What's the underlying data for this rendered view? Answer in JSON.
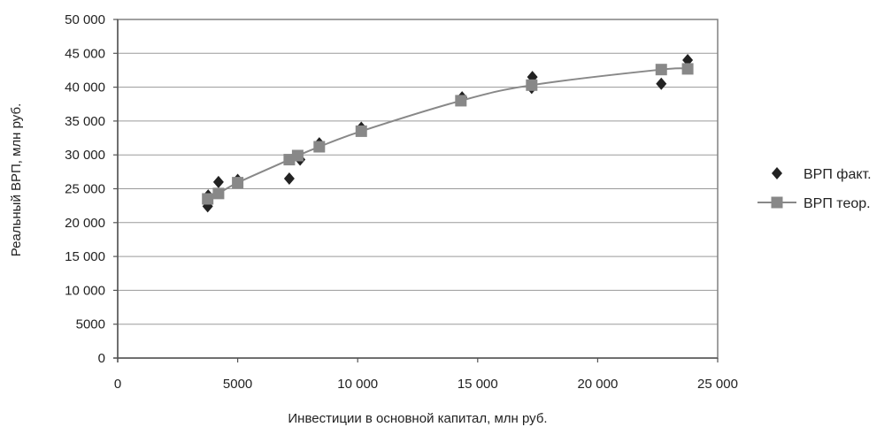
{
  "chart_data": {
    "type": "scatter",
    "xlabel": "Инвестиции в основной капитал, млн руб.",
    "ylabel": "Реальный ВРП, млн руб.",
    "xlim": [
      0,
      25000
    ],
    "ylim": [
      0,
      50000
    ],
    "x_ticks": [
      0,
      5000,
      10000,
      15000,
      20000,
      25000
    ],
    "x_tick_labels": [
      "0",
      "5000",
      "10 000",
      "15 000",
      "20 000",
      "25 000"
    ],
    "y_ticks": [
      0,
      5000,
      10000,
      15000,
      20000,
      25000,
      30000,
      35000,
      40000,
      45000,
      50000
    ],
    "y_tick_labels": [
      "0",
      "5000",
      "10 000",
      "15 000",
      "20 000",
      "25 000",
      "30 000",
      "35 000",
      "40 000",
      "45 000",
      "50 000"
    ],
    "grid": {
      "horizontal": true,
      "vertical": false
    },
    "legend_position": "right",
    "series": [
      {
        "name": "ВРП факт.",
        "style": "markers",
        "marker": "diamond",
        "color": "#222222",
        "points": [
          {
            "x": 3750,
            "y": 22400
          },
          {
            "x": 3770,
            "y": 24000
          },
          {
            "x": 4200,
            "y": 26000
          },
          {
            "x": 5000,
            "y": 26300
          },
          {
            "x": 7150,
            "y": 26500
          },
          {
            "x": 7600,
            "y": 29300
          },
          {
            "x": 8400,
            "y": 31700
          },
          {
            "x": 10150,
            "y": 34000
          },
          {
            "x": 14350,
            "y": 38500
          },
          {
            "x": 17250,
            "y": 39900
          },
          {
            "x": 17280,
            "y": 41500
          },
          {
            "x": 22650,
            "y": 40500
          },
          {
            "x": 23750,
            "y": 44000
          }
        ]
      },
      {
        "name": "ВРП теор.",
        "style": "line-markers",
        "marker": "square",
        "color": "#888888",
        "points": [
          {
            "x": 3750,
            "y": 23500
          },
          {
            "x": 4200,
            "y": 24300
          },
          {
            "x": 5000,
            "y": 25900
          },
          {
            "x": 7150,
            "y": 29300
          },
          {
            "x": 7500,
            "y": 29900
          },
          {
            "x": 8400,
            "y": 31200
          },
          {
            "x": 10150,
            "y": 33500
          },
          {
            "x": 14300,
            "y": 38000
          },
          {
            "x": 17250,
            "y": 40300
          },
          {
            "x": 22650,
            "y": 42600
          },
          {
            "x": 23750,
            "y": 42700
          }
        ]
      }
    ]
  }
}
